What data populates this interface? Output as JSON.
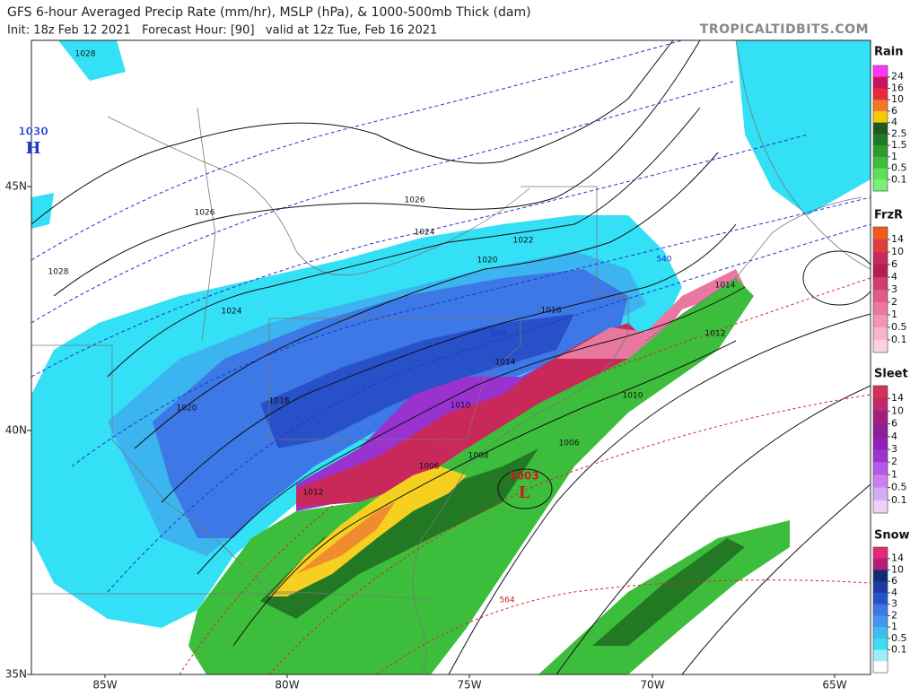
{
  "header": {
    "title": "GFS 6-hour Averaged Precip Rate (mm/hr), MSLP (hPa), & 1000-500mb Thick (dam)",
    "subtitle": "Init: 18z Feb 12 2021   Forecast Hour: [90]   valid at 12z Tue, Feb 16 2021",
    "credit": "TROPICALTIDBITS.COM"
  },
  "map": {
    "lat_labels": [
      "45N",
      "40N",
      "35N"
    ],
    "lon_labels": [
      "85W",
      "80W",
      "75W",
      "70W",
      "65W"
    ],
    "pressure_labels": [
      "1028",
      "1026",
      "1028",
      "1024",
      "1020",
      "1018",
      "1026",
      "1024",
      "1022",
      "1020",
      "1016",
      "1014",
      "1010",
      "1008",
      "1006",
      "1012",
      "1006",
      "1010",
      "1012",
      "1014"
    ],
    "thickness_labels": [
      "540",
      "540",
      "564"
    ],
    "high": {
      "value": "1030",
      "letter": "H"
    },
    "low": {
      "value": "1003",
      "letter": "L"
    }
  },
  "legends": [
    {
      "title": "Rain",
      "labels": [
        "24",
        "16",
        "10",
        "6",
        "4",
        "2.5",
        "1.5",
        "1",
        "0.5",
        "0.1"
      ],
      "colors": [
        "#ff33ff",
        "#c8145a",
        "#e8283c",
        "#f07828",
        "#f5c800",
        "#1e5a1e",
        "#237823",
        "#2e9a2e",
        "#3cbe3c",
        "#5ae05a",
        "#78f078"
      ]
    },
    {
      "title": "FrzR",
      "labels": [
        "14",
        "10",
        "6",
        "4",
        "3",
        "2",
        "1",
        "0.5",
        "0.1"
      ],
      "colors": [
        "#f05a1e",
        "#e03c3c",
        "#c8285a",
        "#b41e50",
        "#d23c6e",
        "#e05a8c",
        "#e878a0",
        "#f096b4",
        "#f8b4c8",
        "#fcd2de"
      ]
    },
    {
      "title": "Sleet",
      "labels": [
        "14",
        "10",
        "6",
        "4",
        "3",
        "2",
        "1",
        "0.5",
        "0.1"
      ],
      "colors": [
        "#d2325a",
        "#c0286e",
        "#a01e82",
        "#8c1e96",
        "#961eb4",
        "#a032d2",
        "#b45ae6",
        "#c882f0",
        "#d8aaf5",
        "#ead2fa"
      ]
    },
    {
      "title": "Snow",
      "labels": [
        "14",
        "10",
        "6",
        "4",
        "3",
        "2",
        "1",
        "0.5",
        "0.1"
      ],
      "colors": [
        "#e6287a",
        "#b41e78",
        "#142878",
        "#1e3ca0",
        "#2850c8",
        "#3c78e6",
        "#4696f0",
        "#3cbef0",
        "#3cdcf5",
        "#9cf0fa",
        "#ffffff"
      ]
    }
  ]
}
